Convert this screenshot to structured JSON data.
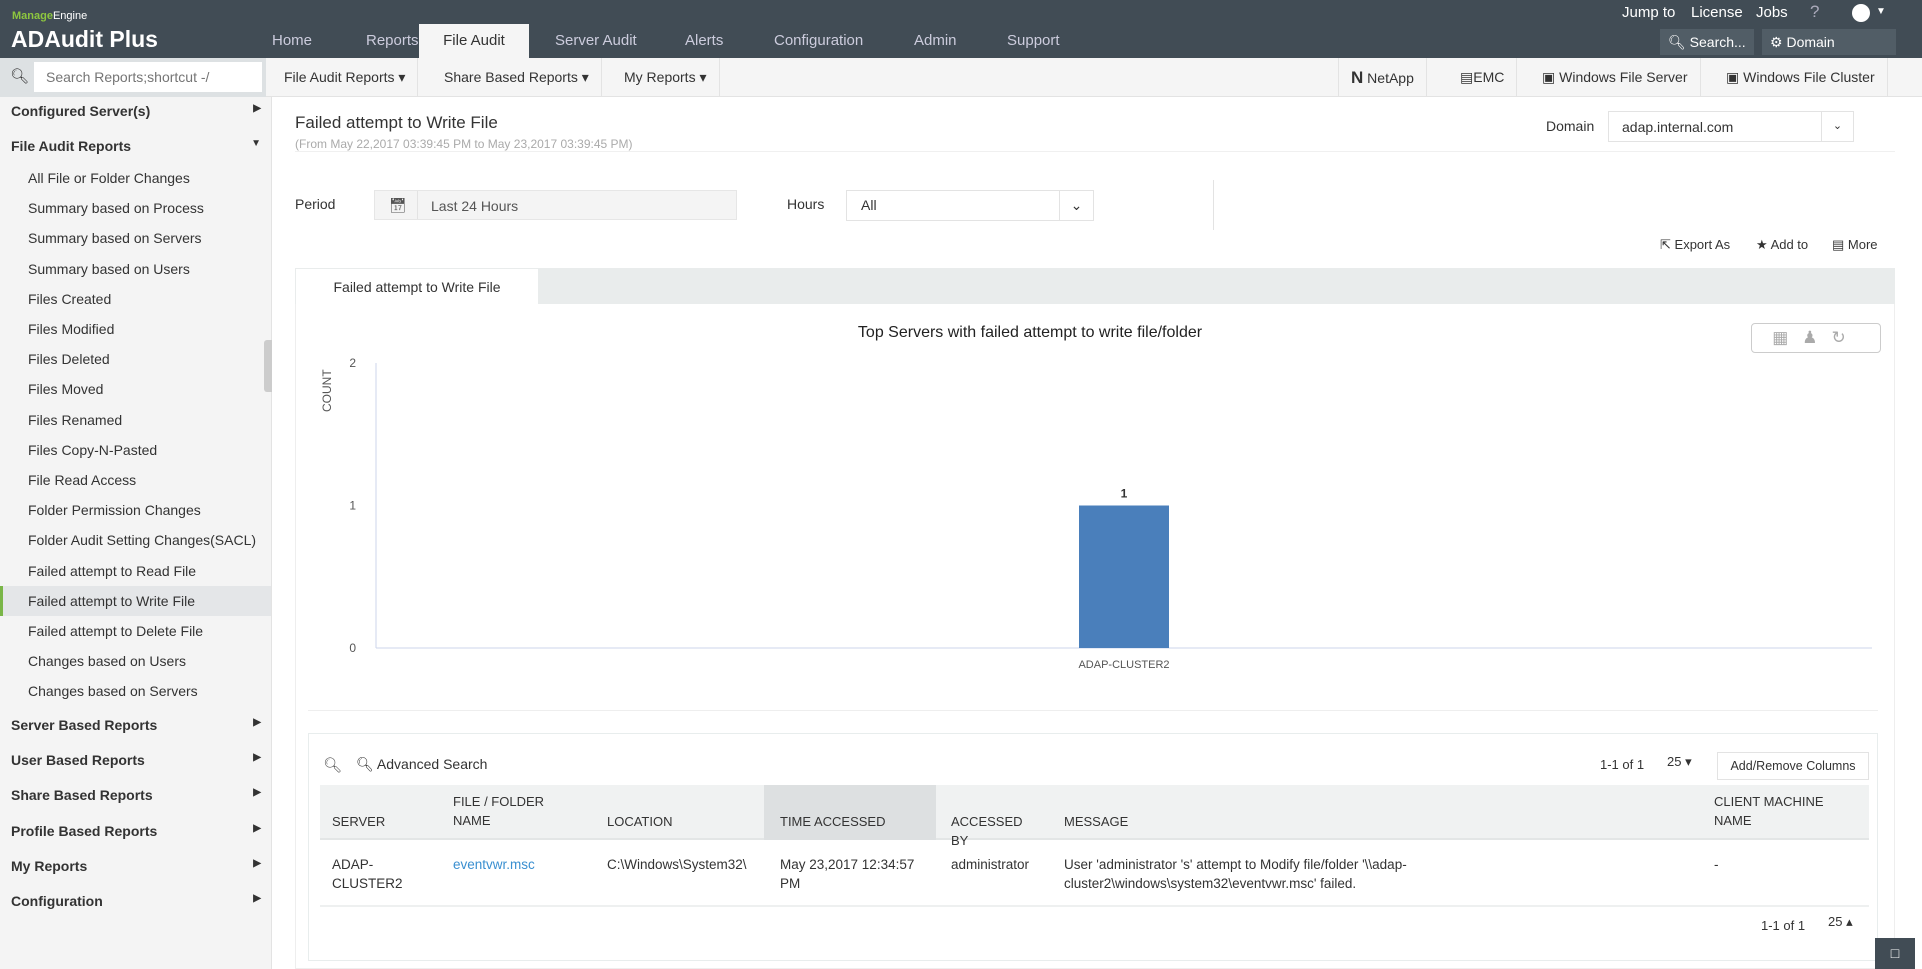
{
  "app": {
    "vendor": "ManageEngine",
    "name": "ADAudit Plus"
  },
  "tabs": [
    {
      "label": "Home"
    },
    {
      "label": "Reports"
    },
    {
      "label": "File Audit",
      "active": true
    },
    {
      "label": "Server Audit"
    },
    {
      "label": "Alerts"
    },
    {
      "label": "Configuration"
    },
    {
      "label": "Admin"
    },
    {
      "label": "Support"
    }
  ],
  "top_links": {
    "jump": "Jump to",
    "license": "License",
    "jobs": "Jobs",
    "help": "?"
  },
  "header_buttons": {
    "search": "Search...",
    "domain_settings": "Domain Settings"
  },
  "subnav": {
    "search_placeholder": "Search Reports;shortcut -/",
    "menus": [
      "File Audit Reports",
      "Share Based Reports",
      "My Reports"
    ],
    "platforms": [
      "NetApp",
      "EMC",
      "Windows File Server",
      "Windows File Cluster"
    ]
  },
  "sidebar": {
    "configured": "Configured Server(s)",
    "file_audit": "File Audit Reports",
    "items": [
      "All File or Folder Changes",
      "Summary based on Process",
      "Summary based on Servers",
      "Summary based on Users",
      "Files Created",
      "Files Modified",
      "Files Deleted",
      "Files Moved",
      "Files Renamed",
      "Files Copy-N-Pasted",
      "File Read Access",
      "Folder Permission Changes",
      "Folder Audit Setting Changes(SACL)",
      "Failed attempt to Read File",
      "Failed attempt to Write File",
      "Failed attempt to Delete File",
      "Changes based on Users",
      "Changes based on Servers"
    ],
    "active_item": "Failed attempt to Write File",
    "groups": [
      "Server Based Reports",
      "User Based Reports",
      "Share Based Reports",
      "Profile Based Reports",
      "My Reports",
      "Configuration"
    ]
  },
  "report": {
    "title": "Failed attempt to Write File",
    "range": "(From May 22,2017 03:39:45 PM to May 23,2017 03:39:45 PM)",
    "domain_label": "Domain",
    "domain": "adap.internal.com",
    "period_label": "Period",
    "period": "Last 24 Hours",
    "hours_label": "Hours",
    "hours": "All",
    "actions": {
      "export": "Export As",
      "add": "Add to",
      "more": "More"
    },
    "tab": "Failed attempt to Write File"
  },
  "chart_data": {
    "type": "bar",
    "title": "Top Servers with failed attempt to write file/folder",
    "ylabel": "COUNT",
    "xlabel": "",
    "categories": [
      "ADAP-CLUSTER2"
    ],
    "values": [
      1
    ],
    "ylim": [
      0,
      2
    ],
    "yticks": [
      0,
      1,
      2
    ],
    "bar_color": "#4a7fbb",
    "data_labels": [
      "1"
    ]
  },
  "table": {
    "advanced_search": "Advanced Search",
    "paging": "1-1 of 1",
    "page_size": "25",
    "add_remove": "Add/Remove Columns",
    "columns": [
      "SERVER",
      "FILE / FOLDER NAME",
      "LOCATION",
      "TIME ACCESSED",
      "ACCESSED BY",
      "MESSAGE",
      "CLIENT MACHINE NAME"
    ],
    "sorted_column": "TIME ACCESSED",
    "rows": [
      [
        "ADAP-CLUSTER2",
        "eventvwr.msc",
        "C:\\Windows\\System32\\",
        "May 23,2017 12:34:57 PM",
        "administrator",
        "User 'administrator 's' attempt to Modify file/folder '\\\\adap-cluster2\\windows\\system32\\eventvwr.msc' failed.",
        "-"
      ]
    ]
  }
}
